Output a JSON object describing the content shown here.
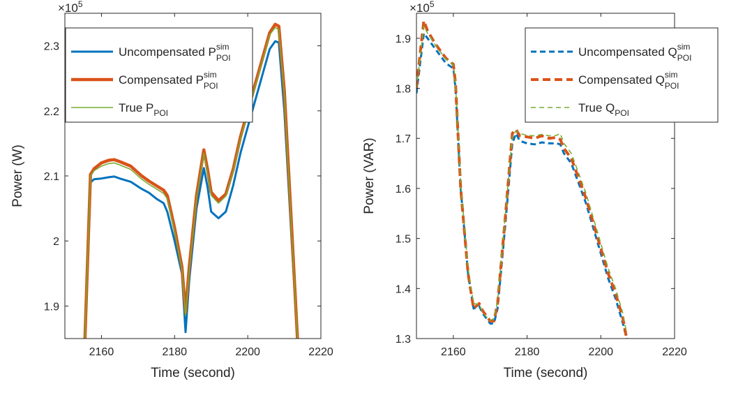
{
  "chart_data": [
    {
      "type": "line",
      "xlabel": "Time (second)",
      "ylabel": "Power (W)",
      "exponent": {
        "base": "×10",
        "power": "5"
      },
      "xlim": [
        2150,
        2220
      ],
      "ylim": [
        1.85,
        2.35
      ],
      "xticks": [
        {
          "v": 2160,
          "t": "2160"
        },
        {
          "v": 2180,
          "t": "2180"
        },
        {
          "v": 2200,
          "t": "2200"
        },
        {
          "v": 2220,
          "t": "2220"
        }
      ],
      "yticks": [
        {
          "v": 1.9,
          "t": "1.9"
        },
        {
          "v": 2.0,
          "t": "2"
        },
        {
          "v": 2.1,
          "t": "2.1"
        },
        {
          "v": 2.2,
          "t": "2.2"
        },
        {
          "v": 2.3,
          "t": "2.3"
        }
      ],
      "legend_position": "top-left",
      "series": [
        {
          "name": "Uncompensated P",
          "sup": "sim",
          "sub": "POI",
          "color": "#0072BD",
          "width": 3,
          "dash": "",
          "x": [
            2155.5,
            2157,
            2158,
            2160,
            2162,
            2163.5,
            2165,
            2168,
            2171,
            2173,
            2175,
            2177,
            2178,
            2180,
            2182,
            2183,
            2184,
            2186,
            2188,
            2189,
            2190,
            2192,
            2194,
            2196,
            2198,
            2200,
            2202,
            2204,
            2206,
            2207.5,
            2208.5,
            2210,
            2212,
            2213.6
          ],
          "y": [
            1.85,
            2.09,
            2.095,
            2.096,
            2.098,
            2.099,
            2.096,
            2.091,
            2.08,
            2.074,
            2.065,
            2.058,
            2.045,
            2.0,
            1.95,
            1.86,
            1.94,
            2.05,
            2.112,
            2.083,
            2.045,
            2.035,
            2.045,
            2.085,
            2.135,
            2.175,
            2.215,
            2.255,
            2.295,
            2.307,
            2.305,
            2.2,
            2.0,
            1.85
          ]
        },
        {
          "name": "Compensated P",
          "sup": "sim",
          "sub": "POI",
          "color": "#D95319",
          "width": 4.5,
          "dash": "",
          "x": [
            2155.5,
            2157,
            2158,
            2160,
            2162,
            2163.5,
            2165,
            2168,
            2171,
            2173,
            2175,
            2177,
            2178,
            2180,
            2182,
            2183,
            2184,
            2186,
            2188,
            2189,
            2190,
            2192,
            2194,
            2196,
            2198,
            2200,
            2202,
            2204,
            2206,
            2207.5,
            2208.5,
            2210,
            2212,
            2213.6
          ],
          "y": [
            1.85,
            2.102,
            2.111,
            2.12,
            2.124,
            2.125,
            2.122,
            2.115,
            2.1,
            2.092,
            2.085,
            2.078,
            2.07,
            2.02,
            1.96,
            1.89,
            1.96,
            2.07,
            2.14,
            2.11,
            2.075,
            2.062,
            2.072,
            2.11,
            2.16,
            2.2,
            2.24,
            2.28,
            2.32,
            2.333,
            2.33,
            2.23,
            2.02,
            1.85
          ]
        },
        {
          "name": "True P",
          "sup": "",
          "sub": "POI",
          "color": "#77AC30",
          "width": 1.6,
          "dash": "",
          "x": [
            2155.5,
            2157,
            2158,
            2160,
            2162,
            2163.5,
            2165,
            2168,
            2171,
            2173,
            2175,
            2177,
            2178,
            2180,
            2182,
            2183,
            2184,
            2186,
            2188,
            2189,
            2190,
            2192,
            2194,
            2196,
            2198,
            2200,
            2202,
            2204,
            2206,
            2207.5,
            2208.5,
            2210,
            2212,
            2213.6
          ],
          "y": [
            1.85,
            2.1,
            2.108,
            2.115,
            2.119,
            2.12,
            2.117,
            2.11,
            2.095,
            2.087,
            2.08,
            2.073,
            2.065,
            2.015,
            1.957,
            1.885,
            1.955,
            2.065,
            2.135,
            2.105,
            2.07,
            2.058,
            2.069,
            2.107,
            2.157,
            2.197,
            2.237,
            2.277,
            2.317,
            2.328,
            2.325,
            2.225,
            2.015,
            1.85
          ]
        }
      ]
    },
    {
      "type": "line",
      "xlabel": "Time (second)",
      "ylabel": "Power (VAR)",
      "exponent": {
        "base": "×10",
        "power": "5"
      },
      "xlim": [
        2150,
        2220
      ],
      "ylim": [
        1.3,
        1.95
      ],
      "xticks": [
        {
          "v": 2160,
          "t": "2160"
        },
        {
          "v": 2180,
          "t": "2180"
        },
        {
          "v": 2200,
          "t": "2200"
        },
        {
          "v": 2220,
          "t": "2220"
        }
      ],
      "yticks": [
        {
          "v": 1.3,
          "t": "1.3"
        },
        {
          "v": 1.4,
          "t": "1.4"
        },
        {
          "v": 1.5,
          "t": "1.5"
        },
        {
          "v": 1.6,
          "t": "1.6"
        },
        {
          "v": 1.7,
          "t": "1.7"
        },
        {
          "v": 1.8,
          "t": "1.8"
        },
        {
          "v": 1.9,
          "t": "1.9"
        }
      ],
      "legend_position": "top-right",
      "series": [
        {
          "name": "Uncompensated Q",
          "sup": "sim",
          "sub": "POI",
          "color": "#0072BD",
          "width": 3,
          "dash": "8,5",
          "x": [
            2150,
            2151,
            2152,
            2153,
            2155,
            2158,
            2160,
            2160.6,
            2162,
            2164,
            2165.5,
            2167,
            2168,
            2169,
            2170,
            2171,
            2172,
            2174,
            2176,
            2177,
            2178,
            2180,
            2182,
            2184,
            2186,
            2188,
            2189,
            2190,
            2192,
            2194,
            2196,
            2198,
            2200,
            2202,
            2204,
            2206,
            2207
          ],
          "y": [
            1.79,
            1.85,
            1.91,
            1.9,
            1.88,
            1.85,
            1.84,
            1.8,
            1.6,
            1.43,
            1.36,
            1.365,
            1.35,
            1.34,
            1.33,
            1.33,
            1.36,
            1.52,
            1.69,
            1.71,
            1.695,
            1.69,
            1.688,
            1.692,
            1.69,
            1.69,
            1.688,
            1.67,
            1.65,
            1.61,
            1.57,
            1.52,
            1.47,
            1.42,
            1.38,
            1.33,
            1.3
          ]
        },
        {
          "name": "Compensated Q",
          "sup": "sim",
          "sub": "POI",
          "color": "#D95319",
          "width": 4,
          "dash": "11,6",
          "x": [
            2150,
            2151,
            2152,
            2153,
            2155,
            2158,
            2160,
            2160.6,
            2162,
            2164,
            2165.5,
            2167,
            2168,
            2169,
            2170,
            2171,
            2172,
            2174,
            2176,
            2177,
            2178,
            2180,
            2182,
            2184,
            2186,
            2188,
            2189,
            2190,
            2192,
            2194,
            2196,
            2198,
            2200,
            2202,
            2204,
            2206,
            2207
          ],
          "y": [
            1.8,
            1.87,
            1.935,
            1.915,
            1.89,
            1.86,
            1.848,
            1.81,
            1.6,
            1.43,
            1.36,
            1.37,
            1.355,
            1.345,
            1.335,
            1.335,
            1.37,
            1.535,
            1.71,
            1.718,
            1.705,
            1.703,
            1.7,
            1.705,
            1.7,
            1.702,
            1.698,
            1.68,
            1.66,
            1.62,
            1.58,
            1.53,
            1.48,
            1.43,
            1.39,
            1.34,
            1.3
          ]
        },
        {
          "name": "True Q",
          "sup": "",
          "sub": "POI",
          "color": "#77AC30",
          "width": 1.6,
          "dash": "7,5",
          "x": [
            2150,
            2151,
            2152,
            2153,
            2155,
            2158,
            2160,
            2160.6,
            2162,
            2164,
            2165.5,
            2167,
            2168,
            2169,
            2170,
            2171,
            2172,
            2174,
            2176,
            2177,
            2178,
            2180,
            2182,
            2184,
            2186,
            2188,
            2189,
            2190,
            2192,
            2194,
            2196,
            2198,
            2200,
            2202,
            2204,
            2206,
            2207
          ],
          "y": [
            1.8,
            1.86,
            1.925,
            1.91,
            1.888,
            1.858,
            1.847,
            1.81,
            1.61,
            1.44,
            1.37,
            1.368,
            1.352,
            1.343,
            1.336,
            1.34,
            1.375,
            1.54,
            1.705,
            1.715,
            1.71,
            1.706,
            1.705,
            1.708,
            1.705,
            1.706,
            1.71,
            1.69,
            1.67,
            1.63,
            1.59,
            1.54,
            1.49,
            1.44,
            1.4,
            1.35,
            1.31
          ]
        }
      ]
    }
  ]
}
